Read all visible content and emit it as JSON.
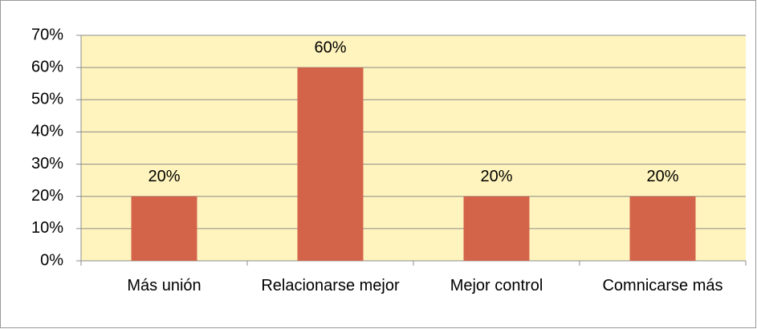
{
  "chart_data": {
    "type": "bar",
    "categories": [
      "Más unión",
      "Relacionarse mejor",
      "Mejor control",
      "Comnicarse más"
    ],
    "values": [
      20,
      60,
      20,
      20
    ],
    "value_labels": [
      "20%",
      "60%",
      "20%",
      "20%"
    ],
    "color": "#d3644a",
    "ylim": [
      0,
      70
    ],
    "yticks": [
      {
        "value": 0,
        "label": "0%"
      },
      {
        "value": 10,
        "label": "10%"
      },
      {
        "value": 20,
        "label": "20%"
      },
      {
        "value": 30,
        "label": "30%"
      },
      {
        "value": 40,
        "label": "40%"
      },
      {
        "value": 50,
        "label": "50%"
      },
      {
        "value": 60,
        "label": "60%"
      },
      {
        "value": 70,
        "label": "70%"
      }
    ],
    "grid": true
  }
}
